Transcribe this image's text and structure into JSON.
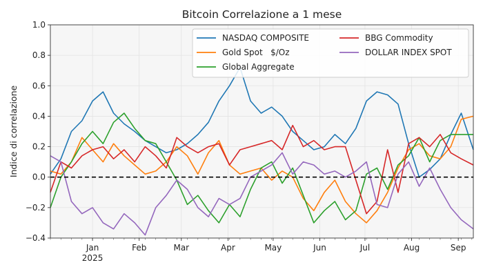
{
  "chart_data": {
    "type": "line",
    "title": "Bitcoin Correlazione a 1 mese",
    "xlabel": "",
    "ylabel": "Indice di correlazione",
    "ylim": [
      -0.4,
      1.0
    ],
    "yticks": [
      "−0.4",
      "−0.2",
      "0.0",
      "0.2",
      "0.4",
      "0.6",
      "0.8",
      "1.0"
    ],
    "xlim": [
      "2024-12-04",
      "2025-09-11"
    ],
    "xticks": [
      {
        "date": "2025-01-01",
        "label": "Jan",
        "sublabel": "2025"
      },
      {
        "date": "2025-02-01",
        "label": "Feb",
        "sublabel": ""
      },
      {
        "date": "2025-03-01",
        "label": "Mar",
        "sublabel": ""
      },
      {
        "date": "2025-04-01",
        "label": "Apr",
        "sublabel": ""
      },
      {
        "date": "2025-05-01",
        "label": "May",
        "sublabel": ""
      },
      {
        "date": "2025-06-01",
        "label": "Jun",
        "sublabel": ""
      },
      {
        "date": "2025-07-01",
        "label": "Jul",
        "sublabel": ""
      },
      {
        "date": "2025-08-01",
        "label": "Aug",
        "sublabel": ""
      },
      {
        "date": "2025-09-01",
        "label": "Sep",
        "sublabel": ""
      }
    ],
    "grid": true,
    "legend_placement": "top-right",
    "reference_line": {
      "y": 0,
      "style": "dashed",
      "color": "#000000"
    },
    "series": [
      {
        "name": "NASDAQ COMPOSITE",
        "color": "#1f77b4",
        "x": [
          "2024-12-04",
          "2024-12-11",
          "2024-12-18",
          "2024-12-25",
          "2025-01-01",
          "2025-01-08",
          "2025-01-15",
          "2025-01-22",
          "2025-01-29",
          "2025-02-05",
          "2025-02-12",
          "2025-02-19",
          "2025-02-26",
          "2025-03-05",
          "2025-03-12",
          "2025-03-19",
          "2025-03-26",
          "2025-04-02",
          "2025-04-09",
          "2025-04-16",
          "2025-04-23",
          "2025-04-30",
          "2025-05-07",
          "2025-05-14",
          "2025-05-21",
          "2025-05-28",
          "2025-06-04",
          "2025-06-11",
          "2025-06-18",
          "2025-06-25",
          "2025-07-02",
          "2025-07-09",
          "2025-07-16",
          "2025-07-23",
          "2025-07-30",
          "2025-08-06",
          "2025-08-13",
          "2025-08-20",
          "2025-08-27",
          "2025-09-03",
          "2025-09-11"
        ],
        "values": [
          0.02,
          0.12,
          0.3,
          0.37,
          0.5,
          0.56,
          0.42,
          0.35,
          0.3,
          0.24,
          0.2,
          0.16,
          0.18,
          0.22,
          0.28,
          0.36,
          0.5,
          0.6,
          0.72,
          0.5,
          0.42,
          0.46,
          0.4,
          0.3,
          0.24,
          0.18,
          0.2,
          0.28,
          0.22,
          0.32,
          0.5,
          0.56,
          0.54,
          0.48,
          0.22,
          0.0,
          0.05,
          0.12,
          0.28,
          0.42,
          0.18
        ]
      },
      {
        "name": "Gold Spot   $/Oz",
        "color": "#ff7f0e",
        "x": [
          "2024-12-04",
          "2024-12-11",
          "2024-12-18",
          "2024-12-25",
          "2025-01-01",
          "2025-01-08",
          "2025-01-15",
          "2025-01-22",
          "2025-01-29",
          "2025-02-05",
          "2025-02-12",
          "2025-02-19",
          "2025-02-26",
          "2025-03-05",
          "2025-03-12",
          "2025-03-19",
          "2025-03-26",
          "2025-04-02",
          "2025-04-09",
          "2025-04-16",
          "2025-04-23",
          "2025-04-30",
          "2025-05-07",
          "2025-05-14",
          "2025-05-21",
          "2025-05-28",
          "2025-06-04",
          "2025-06-11",
          "2025-06-18",
          "2025-06-25",
          "2025-07-02",
          "2025-07-09",
          "2025-07-16",
          "2025-07-23",
          "2025-07-30",
          "2025-08-06",
          "2025-08-13",
          "2025-08-20",
          "2025-08-27",
          "2025-09-03",
          "2025-09-11"
        ],
        "values": [
          0.04,
          0.02,
          0.1,
          0.26,
          0.18,
          0.1,
          0.22,
          0.14,
          0.08,
          0.02,
          0.04,
          0.1,
          0.2,
          0.14,
          0.02,
          0.16,
          0.24,
          0.08,
          0.02,
          0.04,
          0.06,
          -0.02,
          0.04,
          0.0,
          -0.14,
          -0.22,
          -0.1,
          -0.02,
          -0.16,
          -0.24,
          -0.3,
          -0.22,
          -0.1,
          0.06,
          0.18,
          0.22,
          0.14,
          0.12,
          0.2,
          0.38,
          0.4
        ]
      },
      {
        "name": "Global Aggregate",
        "color": "#2ca02c",
        "x": [
          "2024-12-04",
          "2024-12-11",
          "2024-12-18",
          "2024-12-25",
          "2025-01-01",
          "2025-01-08",
          "2025-01-15",
          "2025-01-22",
          "2025-01-29",
          "2025-02-05",
          "2025-02-12",
          "2025-02-19",
          "2025-02-26",
          "2025-03-05",
          "2025-03-12",
          "2025-03-19",
          "2025-03-26",
          "2025-04-02",
          "2025-04-09",
          "2025-04-16",
          "2025-04-23",
          "2025-04-30",
          "2025-05-07",
          "2025-05-14",
          "2025-05-21",
          "2025-05-28",
          "2025-06-04",
          "2025-06-11",
          "2025-06-18",
          "2025-06-25",
          "2025-07-02",
          "2025-07-09",
          "2025-07-16",
          "2025-07-23",
          "2025-07-30",
          "2025-08-06",
          "2025-08-13",
          "2025-08-20",
          "2025-08-27",
          "2025-09-03",
          "2025-09-11"
        ],
        "values": [
          -0.2,
          0.0,
          0.1,
          0.22,
          0.3,
          0.22,
          0.36,
          0.42,
          0.32,
          0.24,
          0.22,
          0.1,
          -0.02,
          -0.18,
          -0.12,
          -0.22,
          -0.3,
          -0.18,
          -0.26,
          -0.08,
          0.06,
          0.1,
          -0.04,
          0.06,
          -0.12,
          -0.3,
          -0.22,
          -0.16,
          -0.28,
          -0.22,
          0.02,
          0.06,
          -0.08,
          0.08,
          0.14,
          0.26,
          0.1,
          0.24,
          0.28,
          0.28,
          0.28
        ]
      },
      {
        "name": "BBG Commodity",
        "color": "#d62728",
        "x": [
          "2024-12-04",
          "2024-12-11",
          "2024-12-18",
          "2024-12-25",
          "2025-01-01",
          "2025-01-08",
          "2025-01-15",
          "2025-01-22",
          "2025-01-29",
          "2025-02-05",
          "2025-02-12",
          "2025-02-19",
          "2025-02-26",
          "2025-03-05",
          "2025-03-12",
          "2025-03-19",
          "2025-03-26",
          "2025-04-02",
          "2025-04-09",
          "2025-04-16",
          "2025-04-23",
          "2025-04-30",
          "2025-05-07",
          "2025-05-14",
          "2025-05-21",
          "2025-05-28",
          "2025-06-04",
          "2025-06-11",
          "2025-06-18",
          "2025-06-25",
          "2025-07-02",
          "2025-07-09",
          "2025-07-16",
          "2025-07-23",
          "2025-07-30",
          "2025-08-06",
          "2025-08-13",
          "2025-08-20",
          "2025-08-27",
          "2025-09-03",
          "2025-09-11"
        ],
        "values": [
          -0.1,
          0.1,
          0.06,
          0.14,
          0.18,
          0.2,
          0.12,
          0.18,
          0.1,
          0.2,
          0.14,
          0.06,
          0.26,
          0.2,
          0.16,
          0.2,
          0.22,
          0.08,
          0.18,
          0.2,
          0.22,
          0.24,
          0.18,
          0.34,
          0.2,
          0.24,
          0.18,
          0.2,
          0.2,
          -0.02,
          -0.24,
          -0.16,
          0.18,
          -0.1,
          0.22,
          0.26,
          0.2,
          0.28,
          0.16,
          0.12,
          0.08
        ]
      },
      {
        "name": "DOLLAR INDEX SPOT",
        "color": "#9467bd",
        "x": [
          "2024-12-04",
          "2024-12-11",
          "2024-12-18",
          "2024-12-25",
          "2025-01-01",
          "2025-01-08",
          "2025-01-15",
          "2025-01-22",
          "2025-01-29",
          "2025-02-05",
          "2025-02-12",
          "2025-02-19",
          "2025-02-26",
          "2025-03-05",
          "2025-03-12",
          "2025-03-19",
          "2025-03-26",
          "2025-04-02",
          "2025-04-09",
          "2025-04-16",
          "2025-04-23",
          "2025-04-30",
          "2025-05-07",
          "2025-05-14",
          "2025-05-21",
          "2025-05-28",
          "2025-06-04",
          "2025-06-11",
          "2025-06-18",
          "2025-06-25",
          "2025-07-02",
          "2025-07-09",
          "2025-07-16",
          "2025-07-23",
          "2025-07-30",
          "2025-08-06",
          "2025-08-13",
          "2025-08-20",
          "2025-08-27",
          "2025-09-03",
          "2025-09-11"
        ],
        "values": [
          0.14,
          0.1,
          -0.16,
          -0.24,
          -0.2,
          -0.3,
          -0.34,
          -0.24,
          -0.3,
          -0.38,
          -0.2,
          -0.12,
          -0.02,
          -0.08,
          -0.2,
          -0.26,
          -0.14,
          -0.18,
          -0.14,
          0.0,
          0.04,
          0.08,
          0.16,
          0.02,
          0.1,
          0.08,
          0.02,
          0.04,
          0.0,
          0.04,
          0.1,
          -0.18,
          -0.2,
          0.02,
          0.1,
          -0.06,
          0.06,
          -0.08,
          -0.2,
          -0.28,
          -0.34
        ]
      }
    ]
  }
}
